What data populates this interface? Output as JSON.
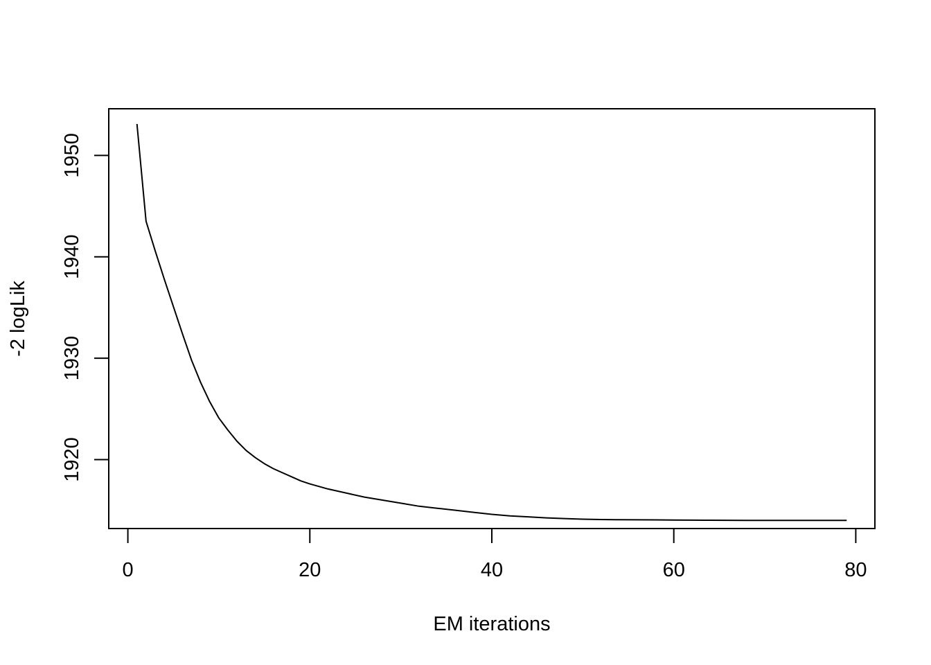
{
  "chart_data": {
    "type": "line",
    "title": "",
    "xlabel": "EM iterations",
    "ylabel": "-2 logLik",
    "xlim": [
      -2.1,
      82.1
    ],
    "ylim": [
      1913.2,
      1954.6
    ],
    "xticks": [
      0,
      20,
      40,
      60,
      80
    ],
    "yticks": [
      1920,
      1930,
      1940,
      1950
    ],
    "xtick_labels": [
      "0",
      "20",
      "40",
      "60",
      "80"
    ],
    "ytick_labels": [
      "1920",
      "1930",
      "1940",
      "1950"
    ],
    "grid": false,
    "legend": "none",
    "line_color": "#000000",
    "series": [
      {
        "x": [
          1,
          2,
          3,
          4,
          5,
          6,
          7,
          8,
          9,
          10,
          11,
          12,
          13,
          14,
          15,
          16,
          17,
          18,
          19,
          20,
          22,
          24,
          26,
          28,
          30,
          32,
          34,
          36,
          38,
          40,
          42,
          44,
          46,
          48,
          50,
          52,
          54,
          56,
          58,
          60,
          62,
          64,
          66,
          68,
          70,
          72,
          74,
          76,
          79
        ],
        "values": [
          1953.1,
          1943.5,
          1940.6,
          1937.8,
          1935.1,
          1932.4,
          1929.8,
          1927.6,
          1925.7,
          1924.1,
          1922.9,
          1921.8,
          1920.9,
          1920.2,
          1919.6,
          1919.1,
          1918.7,
          1918.3,
          1917.9,
          1917.6,
          1917.1,
          1916.7,
          1916.3,
          1916.0,
          1915.7,
          1915.4,
          1915.2,
          1915.0,
          1914.8,
          1914.6,
          1914.45,
          1914.35,
          1914.25,
          1914.18,
          1914.12,
          1914.09,
          1914.07,
          1914.06,
          1914.05,
          1914.04,
          1914.03,
          1914.02,
          1914.01,
          1914.0,
          1914.0,
          1914.0,
          1914.0,
          1914.0,
          1914.0
        ]
      }
    ]
  }
}
